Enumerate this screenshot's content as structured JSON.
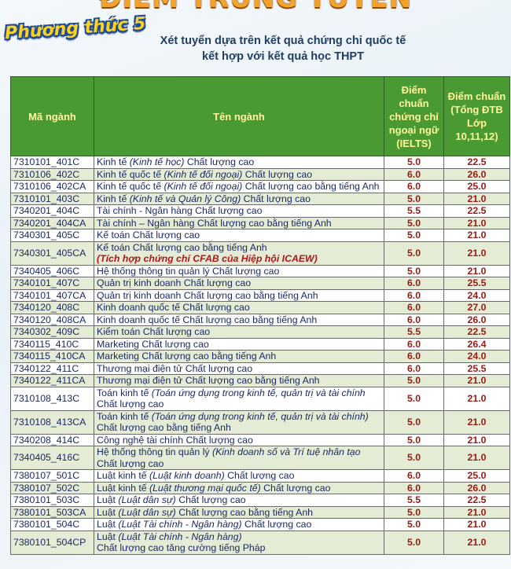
{
  "banner_title": "ĐIỂM TRÚNG TUYỂN",
  "method_badge": "Phương thức 5",
  "subtitle": [
    "Xét tuyển dựa trên kết quả chứng chỉ quốc tế",
    "kết hợp với kết quả học THPT"
  ],
  "table": {
    "headers": [
      "Mã ngành",
      "Tên ngành",
      "Điểm chuẩn chứng chỉ ngoại ngữ (IELTS)",
      "Điểm chuẩn (Tổng ĐTB Lớp 10,11,12)"
    ],
    "rows": [
      {
        "code": "7310101_401C",
        "name": "Kinh tế ",
        "italic": "(Kinh tế học)",
        "rest": " Chất lượng cao",
        "note": "",
        "ielts": "5.0",
        "score": "22.5"
      },
      {
        "code": "7310106_402C",
        "name": "Kinh tế quốc tế ",
        "italic": "(Kinh tế đối ngoại)",
        "rest": " Chất lượng cao",
        "note": "",
        "ielts": "6.0",
        "score": "26.0"
      },
      {
        "code": "7310106_402CA",
        "name": "Kinh tế quốc tế ",
        "italic": "(Kinh tế đối ngoại)",
        "rest": " Chất lượng cao bằng tiếng Anh",
        "note": "",
        "ielts": "6.0",
        "score": "25.0"
      },
      {
        "code": "7310101_403C",
        "name": "Kinh tế ",
        "italic": "(Kinh tế và Quản lý Công)",
        "rest": " Chất lượng cao",
        "note": "",
        "ielts": "5.0",
        "score": "21.0"
      },
      {
        "code": "7340201_404C",
        "name": "Tài chính - Ngân hàng Chất lượng cao",
        "italic": "",
        "rest": "",
        "note": "",
        "ielts": "5.5",
        "score": "22.5"
      },
      {
        "code": "7340201_404CA",
        "name": "Tài chính – Ngân hàng Chất lượng cao bằng tiếng Anh",
        "italic": "",
        "rest": "",
        "note": "",
        "ielts": "5.0",
        "score": "21.0"
      },
      {
        "code": "7340301_405C",
        "name": "Kế toán Chất lượng cao",
        "italic": "",
        "rest": "",
        "note": "",
        "ielts": "5.0",
        "score": "21.0"
      },
      {
        "code": "7340301_405CA",
        "name": "Kế toán Chất lượng cao bằng tiếng Anh",
        "italic": "",
        "rest": "",
        "note": "(Tích hợp chứng chỉ CFAB của Hiệp hội ICAEW)",
        "ielts": "5.0",
        "score": "21.0"
      },
      {
        "code": "7340405_406C",
        "name": "Hệ thống thông tin quản lý Chất lượng cao",
        "italic": "",
        "rest": "",
        "note": "",
        "ielts": "5.0",
        "score": "21.0"
      },
      {
        "code": "7340101_407C",
        "name": "Quản trị kinh doanh Chất lượng cao",
        "italic": "",
        "rest": "",
        "note": "",
        "ielts": "6.0",
        "score": "25.5"
      },
      {
        "code": "7340101_407CA",
        "name": "Quản trị kinh doanh Chất lượng cao bằng tiếng Anh",
        "italic": "",
        "rest": "",
        "note": "",
        "ielts": "6.0",
        "score": "24.0"
      },
      {
        "code": "7340120_408C",
        "name": "Kinh doanh quốc tế Chất lượng cao",
        "italic": "",
        "rest": "",
        "note": "",
        "ielts": "6.0",
        "score": "27.0"
      },
      {
        "code": "7340120_408CA",
        "name": "Kinh doanh quốc tế Chất lượng cao bằng tiếng Anh",
        "italic": "",
        "rest": "",
        "note": "",
        "ielts": "6.0",
        "score": "26.0"
      },
      {
        "code": "7340302_409C",
        "name": "Kiểm toán Chất lượng cao",
        "italic": "",
        "rest": "",
        "note": "",
        "ielts": "5.5",
        "score": "22.5"
      },
      {
        "code": "7340115_410C",
        "name": "Marketing Chất lượng cao",
        "italic": "",
        "rest": "",
        "note": "",
        "ielts": "6.0",
        "score": "26.4"
      },
      {
        "code": "7340115_410CA",
        "name": "Marketing Chất lượng cao bằng tiếng Anh",
        "italic": "",
        "rest": "",
        "note": "",
        "ielts": "6.0",
        "score": "24.0"
      },
      {
        "code": "7340122_411C",
        "name": "Thương mại điện tử Chất lượng cao",
        "italic": "",
        "rest": "",
        "note": "",
        "ielts": "6.0",
        "score": "25.5"
      },
      {
        "code": "7340122_411CA",
        "name": "Thương mại điện tử Chất lượng cao bằng tiếng Anh",
        "italic": "",
        "rest": "",
        "note": "",
        "ielts": "5.0",
        "score": "21.0"
      },
      {
        "code": "7310108_413C",
        "name": "Toán kinh tế ",
        "italic": "(Toán ứng dụng trong kinh tế, quản trị và tài chính",
        "rest": "",
        "line2": "Chất lượng cao",
        "note": "",
        "ielts": "5.0",
        "score": "21.0"
      },
      {
        "code": "7310108_413CA",
        "name": "Toán kinh tế ",
        "italic": "(Toán ứng dụng trong kinh tế, quản trị và tài chính)",
        "rest": "",
        "line2": "Chất lượng cao bằng tiếng Anh",
        "note": "",
        "ielts": "5.0",
        "score": "21.0"
      },
      {
        "code": "7340208_414C",
        "name": "Công nghệ tài chính Chất lượng cao",
        "italic": "",
        "rest": "",
        "note": "",
        "ielts": "5.0",
        "score": "21.0"
      },
      {
        "code": "7340405_416C",
        "name": "Hệ thống thông tin quản lý ",
        "italic": "(Kinh doanh số và Trí tuệ nhân tạo",
        "rest": "",
        "line2": "Chất lượng cao",
        "note": "",
        "ielts": "5.0",
        "score": "21.0"
      },
      {
        "code": "7380107_501C",
        "name": "Luật kinh tế ",
        "italic": "(Luật kinh doanh)",
        "rest": " Chất lượng cao",
        "note": "",
        "ielts": "6.0",
        "score": "25.0"
      },
      {
        "code": "7380107_502C",
        "name": "Luật kinh tế ",
        "italic": "(Luật thương mại quốc tế)",
        "rest": " Chất lượng cao",
        "note": "",
        "ielts": "6.0",
        "score": "26.0"
      },
      {
        "code": "7380101_503C",
        "name": "Luật ",
        "italic": "(Luật dân sự)",
        "rest": " Chất lượng cao",
        "note": "",
        "ielts": "5.5",
        "score": "22.5"
      },
      {
        "code": "7380101_503CA",
        "name": "Luật ",
        "italic": "(Luật dân sự)",
        "rest": " Chất lượng cao bằng tiếng Anh",
        "note": "",
        "ielts": "5.0",
        "score": "21.0"
      },
      {
        "code": "7380101_504C",
        "name": "Luật ",
        "italic": "(Luật Tài chính - Ngân hàng)",
        "rest": " Chất lượng cao",
        "note": "",
        "ielts": "5.0",
        "score": "21.0"
      },
      {
        "code": "7380101_504CP",
        "name": "Luật ",
        "italic": "(Luật Tài chính - Ngân hàng)",
        "rest": "",
        "line2": "Chất lượng cao tăng cường tiếng Pháp",
        "note": "",
        "ielts": "5.0",
        "score": "21.0"
      }
    ]
  },
  "colors": {
    "header_bg": "#4a9a34",
    "header_text": "#fff799",
    "score_text": "#9a1a12",
    "note_text": "#b0161a",
    "row_alt": "#e4ecd6"
  }
}
